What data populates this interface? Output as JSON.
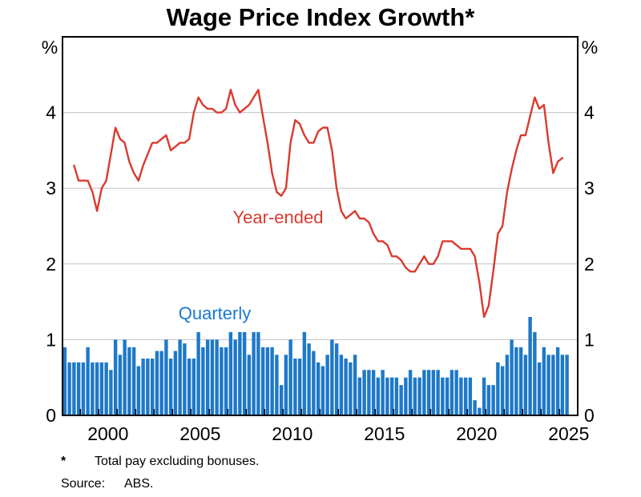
{
  "chart_data": {
    "type": "combo",
    "title": "Wage Price Index Growth*",
    "y_axis": {
      "unit": "%",
      "ticks": [
        0,
        1,
        2,
        3,
        4
      ],
      "ylim": [
        0,
        5
      ],
      "grid": true
    },
    "x_axis": {
      "first_year_tick": 1999,
      "last_year_tick": 2025,
      "label_years": [
        2000,
        2005,
        2010,
        2015,
        2020,
        2025
      ],
      "range_note": "quarterly data from late 1997 to mid 2025"
    },
    "series": [
      {
        "name": "Quarterly",
        "type": "bar",
        "color": "#1e78c8",
        "values": [
          0.9,
          0.7,
          0.7,
          0.7,
          0.7,
          0.9,
          0.7,
          0.7,
          0.7,
          0.7,
          0.6,
          1.0,
          0.8,
          1.0,
          0.9,
          0.9,
          0.65,
          0.75,
          0.75,
          0.75,
          0.85,
          0.85,
          1.0,
          0.75,
          0.85,
          1.0,
          0.95,
          0.75,
          0.75,
          1.1,
          0.9,
          1.0,
          1.0,
          1.0,
          0.9,
          0.9,
          1.1,
          1.0,
          1.1,
          1.1,
          0.8,
          1.1,
          1.1,
          0.9,
          0.9,
          0.9,
          0.8,
          0.4,
          0.8,
          1.0,
          0.75,
          0.75,
          1.1,
          0.95,
          0.85,
          0.7,
          0.65,
          0.8,
          1.0,
          0.95,
          0.8,
          0.75,
          0.7,
          0.8,
          0.5,
          0.6,
          0.6,
          0.6,
          0.5,
          0.6,
          0.5,
          0.5,
          0.5,
          0.4,
          0.5,
          0.6,
          0.5,
          0.5,
          0.6,
          0.6,
          0.6,
          0.6,
          0.5,
          0.5,
          0.6,
          0.6,
          0.5,
          0.5,
          0.5,
          0.2,
          0.1,
          0.5,
          0.4,
          0.4,
          0.7,
          0.65,
          0.8,
          1.0,
          0.9,
          0.9,
          0.8,
          1.3,
          1.1,
          0.7,
          0.9,
          0.8,
          0.8,
          0.9,
          0.8,
          0.8
        ]
      },
      {
        "name": "Year-ended",
        "type": "line",
        "color": "#d93a2e",
        "start_index": 2,
        "values": [
          3.3,
          3.1,
          3.1,
          3.1,
          2.95,
          2.7,
          3.0,
          3.1,
          3.45,
          3.8,
          3.65,
          3.6,
          3.35,
          3.2,
          3.1,
          3.3,
          3.45,
          3.6,
          3.6,
          3.65,
          3.7,
          3.5,
          3.55,
          3.6,
          3.6,
          3.65,
          4.0,
          4.2,
          4.1,
          4.05,
          4.05,
          4.0,
          4.0,
          4.05,
          4.3,
          4.1,
          4.0,
          4.05,
          4.1,
          4.2,
          4.3,
          3.95,
          3.6,
          3.2,
          2.95,
          2.9,
          3.0,
          3.6,
          3.9,
          3.85,
          3.7,
          3.6,
          3.6,
          3.75,
          3.8,
          3.8,
          3.5,
          3.0,
          2.7,
          2.6,
          2.65,
          2.7,
          2.6,
          2.6,
          2.55,
          2.4,
          2.3,
          2.3,
          2.25,
          2.1,
          2.1,
          2.05,
          1.95,
          1.9,
          1.9,
          2.0,
          2.1,
          2.0,
          2.0,
          2.1,
          2.3,
          2.3,
          2.3,
          2.25,
          2.2,
          2.2,
          2.2,
          2.1,
          1.75,
          1.3,
          1.45,
          1.9,
          2.4,
          2.5,
          2.95,
          3.25,
          3.5,
          3.7,
          3.7,
          3.95,
          4.2,
          4.05,
          4.1,
          3.6,
          3.2,
          3.35,
          3.4
        ]
      }
    ],
    "annotations": [
      {
        "id": "year-ended-label",
        "text": "Year-ended",
        "color": "#d93a2e"
      },
      {
        "id": "quarterly-label",
        "text": "Quarterly",
        "color": "#1b78d0"
      }
    ],
    "footnotes": [
      {
        "marker": "*",
        "text": "Total pay excluding bonuses."
      },
      {
        "marker": "Source:",
        "text": "ABS."
      }
    ],
    "colors": {
      "grid": "#c3c3c3",
      "frame": "#000000",
      "text": "#000000"
    }
  }
}
